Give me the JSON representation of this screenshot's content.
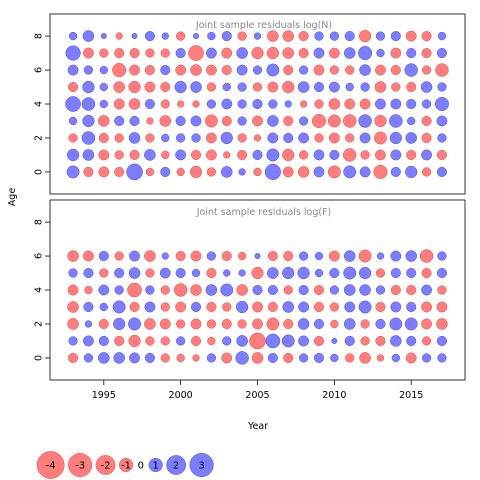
{
  "chart_data": {
    "type": "scatter",
    "subtype": "bubble-residuals",
    "xlabel": "Year",
    "ylabel": "Age",
    "xticks": [
      1995,
      2000,
      2005,
      2010,
      2015
    ],
    "yticks": [
      0,
      2,
      4,
      6,
      8
    ],
    "xlim": [
      1991.5,
      2018.5
    ],
    "ylim": [
      -1.3,
      9.3
    ],
    "years": [
      1993,
      1994,
      1995,
      1996,
      1997,
      1998,
      1999,
      2000,
      2001,
      2002,
      2003,
      2004,
      2005,
      2006,
      2007,
      2008,
      2009,
      2010,
      2011,
      2012,
      2013,
      2014,
      2015,
      2016,
      2017
    ],
    "colors": {
      "negative": "#ff6666",
      "positive": "#6666ff",
      "stroke_negative": "#dd3333",
      "stroke_positive": "#3333dd"
    },
    "panels": [
      {
        "title": "Joint sample residuals log(N)",
        "ages": [
          0,
          1,
          2,
          3,
          4,
          5,
          6,
          7,
          8
        ],
        "residuals": [
          [
            1.0,
            -0.6,
            -0.7,
            -0.6,
            1.7,
            -0.4,
            0.6,
            -0.4,
            -0.9,
            -0.5,
            0.8,
            0.3,
            -0.4,
            1.6,
            -0.7,
            -0.8,
            0.7,
            -1.0,
            1.0,
            0.7,
            -1.2,
            0.6,
            0.9,
            -0.5,
            0.6
          ],
          [
            0.9,
            0.8,
            -0.7,
            -0.5,
            -0.6,
            0.8,
            -0.4,
            0.7,
            -0.6,
            -0.7,
            -0.3,
            -0.6,
            0.6,
            1.0,
            -0.9,
            -0.5,
            0.7,
            0.6,
            -1.1,
            -0.5,
            -0.7,
            0.7,
            -0.6,
            0.7,
            -0.6
          ],
          [
            -0.5,
            1.1,
            -0.6,
            -0.5,
            0.8,
            -0.5,
            0.4,
            0.5,
            0.5,
            -0.7,
            0.9,
            -0.5,
            -0.3,
            0.7,
            0.6,
            0.7,
            -0.5,
            -0.7,
            -0.5,
            0.7,
            -1.0,
            0.9,
            0.8,
            -0.6,
            0.5
          ],
          [
            0.4,
            0.9,
            -0.8,
            0.6,
            0.6,
            -0.3,
            -0.8,
            0.6,
            0.7,
            -1.0,
            -0.6,
            0.5,
            -0.7,
            0.8,
            -0.6,
            0.5,
            -1.2,
            -1.0,
            -1.1,
            1.1,
            -0.9,
            1.1,
            0.4,
            -0.6,
            0.7
          ],
          [
            1.5,
            1.1,
            0.4,
            -0.7,
            -0.8,
            0.6,
            -0.5,
            -0.3,
            -0.3,
            0.5,
            0.7,
            0.5,
            0.6,
            0.5,
            0.3,
            -0.3,
            -0.5,
            -0.8,
            -0.7,
            -0.7,
            0.7,
            0.7,
            0.6,
            0.5,
            1.2
          ],
          [
            -0.6,
            0.9,
            0.4,
            -0.8,
            -0.9,
            -0.7,
            -0.6,
            0.9,
            0.8,
            -0.5,
            0.4,
            0.5,
            -0.5,
            -0.7,
            -0.9,
            0.8,
            0.6,
            0.7,
            0.4,
            0.5,
            -0.8,
            -0.5,
            -0.6,
            0.8,
            0.5
          ],
          [
            0.7,
            0.5,
            0.4,
            -1.2,
            -0.7,
            -0.6,
            0.6,
            -0.7,
            -0.8,
            -0.7,
            -0.6,
            0.7,
            0.5,
            1.0,
            -0.6,
            0.5,
            -0.7,
            -0.5,
            -0.5,
            0.8,
            -0.7,
            -0.6,
            1.1,
            -0.5,
            -1.1
          ],
          [
            1.4,
            -0.7,
            -0.5,
            -0.6,
            -0.6,
            -0.5,
            -0.5,
            0.6,
            -1.5,
            0.7,
            -0.7,
            0.8,
            -0.9,
            -0.9,
            -0.8,
            -0.6,
            0.7,
            -0.7,
            0.8,
            1.2,
            0.4,
            -0.7,
            0.6,
            -0.6,
            0.6
          ],
          [
            0.4,
            0.8,
            0.2,
            -0.3,
            0.2,
            0.6,
            0.3,
            -0.5,
            0.2,
            0.4,
            0.6,
            -0.5,
            0.3,
            -0.8,
            -0.8,
            -0.6,
            0.5,
            0.5,
            0.6,
            -0.9,
            0.5,
            0.6,
            -0.7,
            -0.6,
            0.4
          ]
        ]
      },
      {
        "title": "Joint sample residuals log(F)",
        "ages": [
          0,
          1,
          2,
          3,
          4,
          5,
          6
        ],
        "residuals": [
          [
            -0.6,
            0.5,
            0.8,
            0.8,
            0.7,
            0.6,
            -0.5,
            -0.4,
            -0.3,
            0.5,
            -0.7,
            1.1,
            -0.8,
            0.6,
            -0.6,
            0.5,
            0.6,
            0.4,
            -0.5,
            -0.8,
            -0.3,
            0.4,
            -0.7,
            0.5,
            0.5
          ],
          [
            0.5,
            0.7,
            0.6,
            -0.6,
            -0.9,
            -0.5,
            -0.5,
            0.5,
            -0.6,
            -0.4,
            0.5,
            0.8,
            -1.7,
            1.3,
            1.0,
            0.7,
            -0.6,
            0.2,
            0.6,
            -0.5,
            -0.6,
            0.8,
            0.6,
            -0.5,
            0.6
          ],
          [
            -0.8,
            0.3,
            -0.6,
            0.9,
            1.0,
            -0.8,
            -0.7,
            -0.5,
            -0.7,
            -0.5,
            -0.6,
            -0.5,
            -0.7,
            -1.0,
            -0.6,
            0.8,
            0.6,
            -0.4,
            0.8,
            -0.5,
            0.6,
            1.0,
            1.0,
            -0.7,
            -0.8
          ],
          [
            -0.8,
            0.6,
            0.4,
            1.0,
            -0.6,
            0.7,
            -0.5,
            -0.7,
            0.6,
            -0.6,
            -0.5,
            0.9,
            -0.7,
            -0.6,
            0.8,
            0.7,
            -0.6,
            -0.5,
            0.7,
            1.0,
            -0.6,
            0.7,
            0.6,
            -0.7,
            -0.7
          ],
          [
            -0.7,
            -0.4,
            0.7,
            0.5,
            -1.3,
            0.5,
            -0.5,
            -1.1,
            -0.8,
            0.8,
            1.0,
            -0.8,
            0.6,
            0.6,
            -0.5,
            0.6,
            -0.6,
            0.5,
            0.8,
            0.8,
            0.5,
            -0.6,
            -0.6,
            0.7,
            -0.5
          ],
          [
            0.5,
            0.6,
            -0.5,
            0.6,
            0.8,
            -0.5,
            0.7,
            0.6,
            0.4,
            -0.6,
            0.3,
            0.3,
            -0.9,
            0.8,
            0.9,
            0.9,
            0.4,
            0.6,
            1.0,
            0.9,
            -0.5,
            0.6,
            0.6,
            -0.6,
            0.6
          ],
          [
            -0.8,
            -0.7,
            0.6,
            -0.5,
            0.7,
            -0.8,
            0.3,
            -0.6,
            -0.7,
            0.5,
            -0.6,
            -0.4,
            0.2,
            -0.6,
            -0.6,
            0.5,
            0.4,
            -0.7,
            0.8,
            -1.0,
            0.3,
            0.7,
            0.8,
            -1.1,
            0.5
          ]
        ]
      }
    ],
    "legend": {
      "placement": "bottom-left",
      "items": [
        {
          "label": "-4",
          "value": -4
        },
        {
          "label": "-3",
          "value": -3
        },
        {
          "label": "-2",
          "value": -2
        },
        {
          "label": "-1",
          "value": -1
        },
        {
          "label": "0",
          "value": 0
        },
        {
          "label": "1",
          "value": 1
        },
        {
          "label": "2",
          "value": 2
        },
        {
          "label": "3",
          "value": 3
        }
      ]
    }
  }
}
